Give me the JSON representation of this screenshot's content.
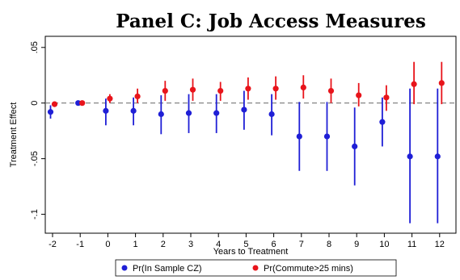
{
  "chart_data": {
    "type": "scatter",
    "title": "Panel C: Job Access Measures",
    "xlabel": "Years to Treatment",
    "ylabel": "Treatment Effect",
    "x_ticks": [
      "-2",
      "-1",
      "0",
      "1",
      "2",
      "3",
      "4",
      "5",
      "6",
      "7",
      "8",
      "9",
      "10",
      "11",
      "12"
    ],
    "y_ticks": [
      {
        "value": 0.05,
        "label": ".05"
      },
      {
        "value": 0,
        "label": "0"
      },
      {
        "value": -0.05,
        "label": "-.05"
      },
      {
        "value": -0.1,
        "label": "-.1"
      }
    ],
    "ylim": [
      -0.117,
      0.06
    ],
    "reference_line": 0,
    "legend_position": "bottom",
    "series": [
      {
        "name": "Pr(In Sample CZ)",
        "color": "#1f1fd6",
        "points": [
          {
            "x": -2,
            "y": -0.008,
            "lo": -0.014,
            "hi": -0.002
          },
          {
            "x": -1,
            "y": 0.0,
            "lo": 0.0,
            "hi": 0.0
          },
          {
            "x": 0,
            "y": -0.007,
            "lo": -0.02,
            "hi": 0.004
          },
          {
            "x": 1,
            "y": -0.007,
            "lo": -0.02,
            "hi": 0.005
          },
          {
            "x": 2,
            "y": -0.01,
            "lo": -0.028,
            "hi": 0.007
          },
          {
            "x": 3,
            "y": -0.009,
            "lo": -0.027,
            "hi": 0.008
          },
          {
            "x": 4,
            "y": -0.009,
            "lo": -0.027,
            "hi": 0.008
          },
          {
            "x": 5,
            "y": -0.006,
            "lo": -0.024,
            "hi": 0.011
          },
          {
            "x": 6,
            "y": -0.01,
            "lo": -0.029,
            "hi": 0.008
          },
          {
            "x": 7,
            "y": -0.03,
            "lo": -0.061,
            "hi": 0.001
          },
          {
            "x": 8,
            "y": -0.03,
            "lo": -0.061,
            "hi": 0.001
          },
          {
            "x": 9,
            "y": -0.039,
            "lo": -0.074,
            "hi": -0.004
          },
          {
            "x": 10,
            "y": -0.017,
            "lo": -0.039,
            "hi": 0.005
          },
          {
            "x": 11,
            "y": -0.048,
            "lo": -0.108,
            "hi": 0.013
          },
          {
            "x": 12,
            "y": -0.048,
            "lo": -0.108,
            "hi": 0.013
          }
        ]
      },
      {
        "name": "Pr(Commute>25 mins)",
        "color": "#e8141b",
        "points": [
          {
            "x": -2,
            "y": -0.001,
            "lo": -0.002,
            "hi": 0.0
          },
          {
            "x": -1,
            "y": 0.0,
            "lo": -0.001,
            "hi": 0.001
          },
          {
            "x": 0,
            "y": 0.004,
            "lo": 0.0,
            "hi": 0.008
          },
          {
            "x": 1,
            "y": 0.006,
            "lo": 0.0,
            "hi": 0.013
          },
          {
            "x": 2,
            "y": 0.011,
            "lo": 0.002,
            "hi": 0.02
          },
          {
            "x": 3,
            "y": 0.012,
            "lo": 0.002,
            "hi": 0.022
          },
          {
            "x": 4,
            "y": 0.011,
            "lo": 0.002,
            "hi": 0.019
          },
          {
            "x": 5,
            "y": 0.013,
            "lo": 0.003,
            "hi": 0.023
          },
          {
            "x": 6,
            "y": 0.013,
            "lo": 0.003,
            "hi": 0.024
          },
          {
            "x": 7,
            "y": 0.014,
            "lo": 0.004,
            "hi": 0.025
          },
          {
            "x": 8,
            "y": 0.011,
            "lo": 0.0,
            "hi": 0.022
          },
          {
            "x": 9,
            "y": 0.007,
            "lo": -0.003,
            "hi": 0.018
          },
          {
            "x": 10,
            "y": 0.005,
            "lo": -0.007,
            "hi": 0.016
          },
          {
            "x": 11,
            "y": 0.017,
            "lo": -0.001,
            "hi": 0.037
          },
          {
            "x": 12,
            "y": 0.018,
            "lo": -0.001,
            "hi": 0.037
          }
        ]
      }
    ]
  }
}
